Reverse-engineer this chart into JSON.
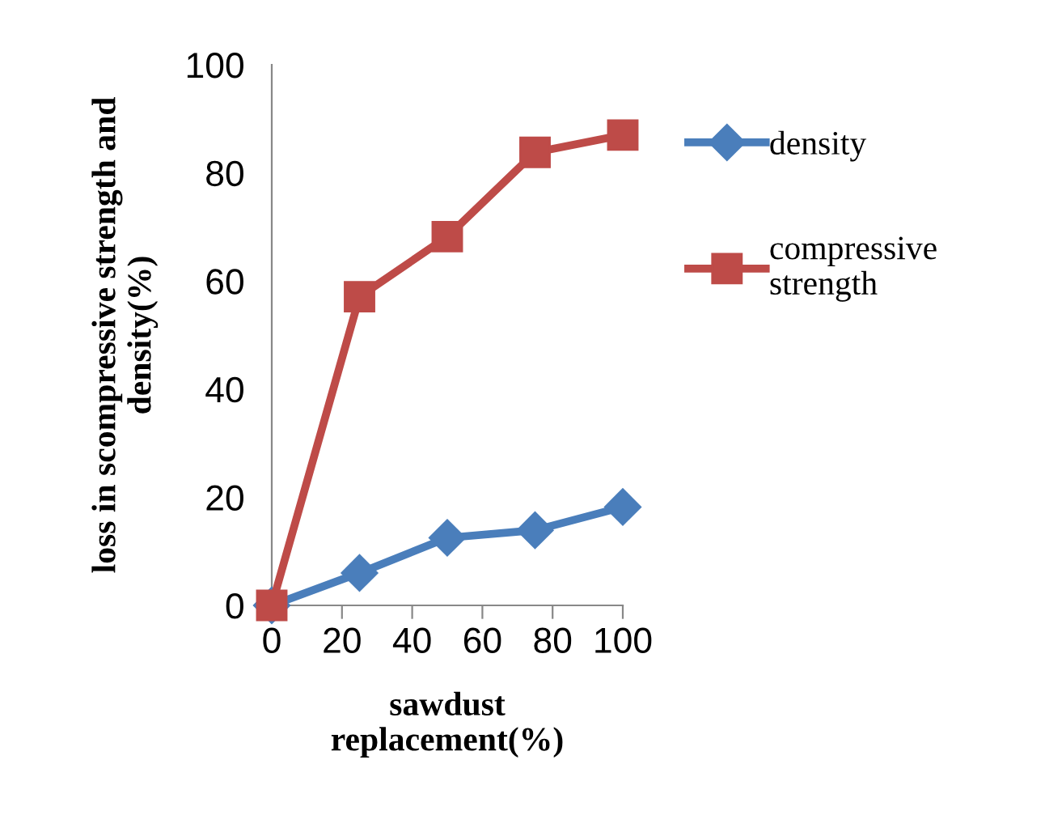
{
  "chart_data": {
    "type": "line",
    "xlabel": "sawdust\nreplacement(%)",
    "ylabel": "loss in scompressive strength and\ndensity(%)",
    "x": [
      0,
      25,
      50,
      75,
      100
    ],
    "series": [
      {
        "name": "density",
        "color": "#4a7ebb",
        "marker": "diamond",
        "values": [
          0,
          6.0,
          12.5,
          13.9,
          18.2
        ]
      },
      {
        "name": "compressive\nstrength",
        "color": "#be4b48",
        "marker": "square",
        "values": [
          0,
          57.1,
          68.2,
          83.8,
          87.0
        ]
      }
    ],
    "xlim": [
      0,
      100
    ],
    "xticks": [
      0,
      20,
      40,
      60,
      80,
      100
    ],
    "ylim": [
      0,
      100
    ],
    "yticks": [
      0,
      20,
      40,
      60,
      80,
      100
    ],
    "grid": false,
    "legend": "right",
    "line_style": "solid"
  }
}
